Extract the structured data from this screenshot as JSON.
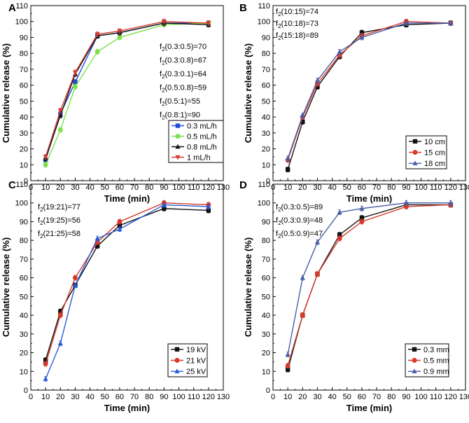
{
  "chart_data": [
    {
      "type": "line",
      "panel_label": "A",
      "xlabel": "Time (min)",
      "ylabel": "Cumulative release (%)",
      "xlim": [
        0,
        130
      ],
      "ylim": [
        0,
        110
      ],
      "xticks": [
        0,
        10,
        20,
        30,
        40,
        50,
        60,
        70,
        80,
        90,
        100,
        110,
        120,
        130
      ],
      "yticks": [
        0,
        10,
        20,
        30,
        40,
        50,
        60,
        70,
        80,
        90,
        100,
        110
      ],
      "x": [
        10,
        20,
        30,
        45,
        60,
        90,
        120
      ],
      "legend_position": "bottom-right",
      "annotations_position": "right",
      "annotations": [
        {
          "prefix": "f",
          "sub": "2",
          "text": "(0.3:0.5)=70"
        },
        {
          "prefix": "f",
          "sub": "2",
          "text": "(0.3:0.8)=67"
        },
        {
          "prefix": "f",
          "sub": "2",
          "text": "(0.3:0.1)=64"
        },
        {
          "prefix": "f",
          "sub": "2",
          "text": "(0.5:0.8)=59"
        },
        {
          "prefix": "f",
          "sub": "2",
          "text": "(0.5:1)=55"
        },
        {
          "prefix": "f",
          "sub": "2",
          "text": "(0.8:1)=90"
        }
      ],
      "series": [
        {
          "name": "0.3 mL/h",
          "color": "#1f4fd8",
          "marker": "square",
          "values": [
            13,
            42,
            62,
            91,
            93,
            99,
            99
          ]
        },
        {
          "name": "0.5 mL/h",
          "color": "#7ee04a",
          "marker": "circle",
          "values": [
            10,
            32,
            59,
            81,
            90,
            98,
            99
          ]
        },
        {
          "name": "0.8 mL/h",
          "color": "#111111",
          "marker": "triangle",
          "values": [
            14,
            41,
            67,
            91,
            93,
            99,
            98
          ]
        },
        {
          "name": "1 mL/h",
          "color": "#d73a2b",
          "marker": "triangle-down",
          "values": [
            15,
            44,
            68,
            92,
            94,
            100,
            99
          ]
        }
      ]
    },
    {
      "type": "line",
      "panel_label": "B",
      "xlabel": "Time (min)",
      "ylabel": "Cumulative release (%)",
      "xlim": [
        0,
        130
      ],
      "ylim": [
        0,
        110
      ],
      "xticks": [
        0,
        10,
        20,
        30,
        40,
        50,
        60,
        70,
        80,
        90,
        100,
        110,
        120,
        130
      ],
      "yticks": [
        0,
        10,
        20,
        30,
        40,
        50,
        60,
        70,
        80,
        90,
        100,
        110
      ],
      "x": [
        10,
        20,
        30,
        45,
        60,
        90,
        120
      ],
      "legend_position": "bottom-right",
      "annotations_position": "top-left",
      "annotations": [
        {
          "prefix": "f",
          "sub": "2",
          "text": "(10:15)=74"
        },
        {
          "prefix": "f",
          "sub": "2",
          "text": "(10:18)=73"
        },
        {
          "prefix": "f",
          "sub": "2",
          "text": "(15:18)=89"
        }
      ],
      "series": [
        {
          "name": "10 cm",
          "color": "#111111",
          "marker": "square",
          "values": [
            7,
            37,
            59,
            78,
            93,
            98,
            99
          ]
        },
        {
          "name": "15 cm",
          "color": "#d73a2b",
          "marker": "circle",
          "values": [
            13,
            40,
            61,
            79,
            91,
            100,
            99
          ]
        },
        {
          "name": "18 cm",
          "color": "#4a5ea8",
          "marker": "triangle",
          "values": [
            14,
            41,
            63,
            81,
            90,
            99,
            99
          ]
        }
      ]
    },
    {
      "type": "line",
      "panel_label": "C",
      "xlabel": "Time (min)",
      "ylabel": "Cumulative release (%)",
      "xlim": [
        0,
        130
      ],
      "ylim": [
        0,
        110
      ],
      "xticks": [
        0,
        10,
        20,
        30,
        40,
        50,
        60,
        70,
        80,
        90,
        100,
        110,
        120,
        130
      ],
      "yticks": [
        0,
        10,
        20,
        30,
        40,
        50,
        60,
        70,
        80,
        90,
        100,
        110
      ],
      "x": [
        10,
        20,
        30,
        45,
        60,
        90,
        120
      ],
      "legend_position": "bottom-right",
      "annotations_position": "top-left",
      "annotations": [
        {
          "prefix": "f",
          "sub": "2",
          "text": "(19:21)=77"
        },
        {
          "prefix": "f",
          "sub": "2",
          "text": "(19:25)=56"
        },
        {
          "prefix": "f",
          "sub": "2",
          "text": "(21:25)=58"
        }
      ],
      "series": [
        {
          "name": "19 kV",
          "color": "#111111",
          "marker": "square",
          "values": [
            16,
            42,
            56,
            77,
            88,
            97,
            96
          ]
        },
        {
          "name": "21 kV",
          "color": "#d73a2b",
          "marker": "circle",
          "values": [
            14,
            40,
            60,
            79,
            90,
            100,
            99
          ]
        },
        {
          "name": "25 kV",
          "color": "#2b5bd8",
          "marker": "triangle",
          "values": [
            6,
            25,
            56,
            81,
            86,
            99,
            98
          ]
        }
      ]
    },
    {
      "type": "line",
      "panel_label": "D",
      "xlabel": "Time (min)",
      "ylabel": "Cumulative release (%)",
      "xlim": [
        0,
        130
      ],
      "ylim": [
        0,
        110
      ],
      "xticks": [
        0,
        10,
        20,
        30,
        40,
        50,
        60,
        70,
        80,
        90,
        100,
        110,
        120,
        130
      ],
      "yticks": [
        0,
        10,
        20,
        30,
        40,
        50,
        60,
        70,
        80,
        90,
        100,
        110
      ],
      "x": [
        10,
        20,
        30,
        45,
        60,
        90,
        120
      ],
      "legend_position": "bottom-right",
      "annotations_position": "top-left",
      "annotations": [
        {
          "prefix": "f",
          "sub": "2",
          "text": "(0.3:0.5)=89"
        },
        {
          "prefix": "f",
          "sub": "2",
          "text": "(0.3:0.9)=48"
        },
        {
          "prefix": "f",
          "sub": "2",
          "text": "(0.5:0.9)=47"
        }
      ],
      "series": [
        {
          "name": "0.3 mm",
          "color": "#111111",
          "marker": "square",
          "values": [
            11,
            40,
            62,
            83,
            92,
            99,
            99
          ]
        },
        {
          "name": "0.5 mm",
          "color": "#d73a2b",
          "marker": "circle",
          "values": [
            13,
            40,
            62,
            81,
            90,
            98,
            99
          ]
        },
        {
          "name": "0.9 mm",
          "color": "#4a5ea8",
          "marker": "triangle",
          "values": [
            19,
            60,
            79,
            95,
            97,
            100,
            100
          ]
        }
      ]
    }
  ]
}
